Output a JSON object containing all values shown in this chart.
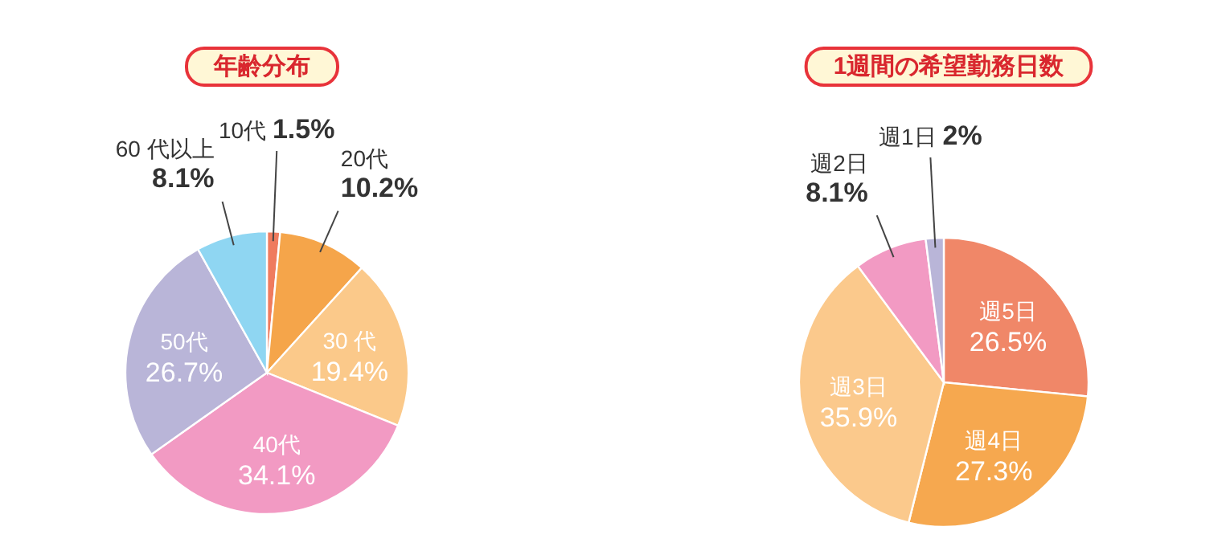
{
  "chart_data": [
    {
      "type": "pie",
      "title": "年齢分布",
      "categories": [
        "10代",
        "20代",
        "30 代",
        "40代",
        "50代",
        "60 代以上"
      ],
      "values": [
        1.5,
        10.2,
        19.4,
        34.1,
        26.7,
        8.1
      ],
      "colors": [
        "#ef7b5e",
        "#f5a54a",
        "#fbc98a",
        "#f29ac3",
        "#b9b5d8",
        "#8fd6f2"
      ],
      "value_labels": [
        "1.5%",
        "10.2%",
        "19.4%",
        "34.1%",
        "26.7%",
        "8.1%"
      ]
    },
    {
      "type": "pie",
      "title": "1週間の希望勤務日数",
      "categories": [
        "週5日",
        "週4日",
        "週3日",
        "週2日",
        "週1日"
      ],
      "values": [
        26.5,
        27.3,
        35.9,
        8.1,
        2
      ],
      "colors": [
        "#f08768",
        "#f6a84f",
        "#fbc98c",
        "#f29ac3",
        "#b9b5d8"
      ],
      "value_labels": [
        "26.5%",
        "27.3%",
        "35.9%",
        "8.1%",
        "2%"
      ]
    }
  ]
}
